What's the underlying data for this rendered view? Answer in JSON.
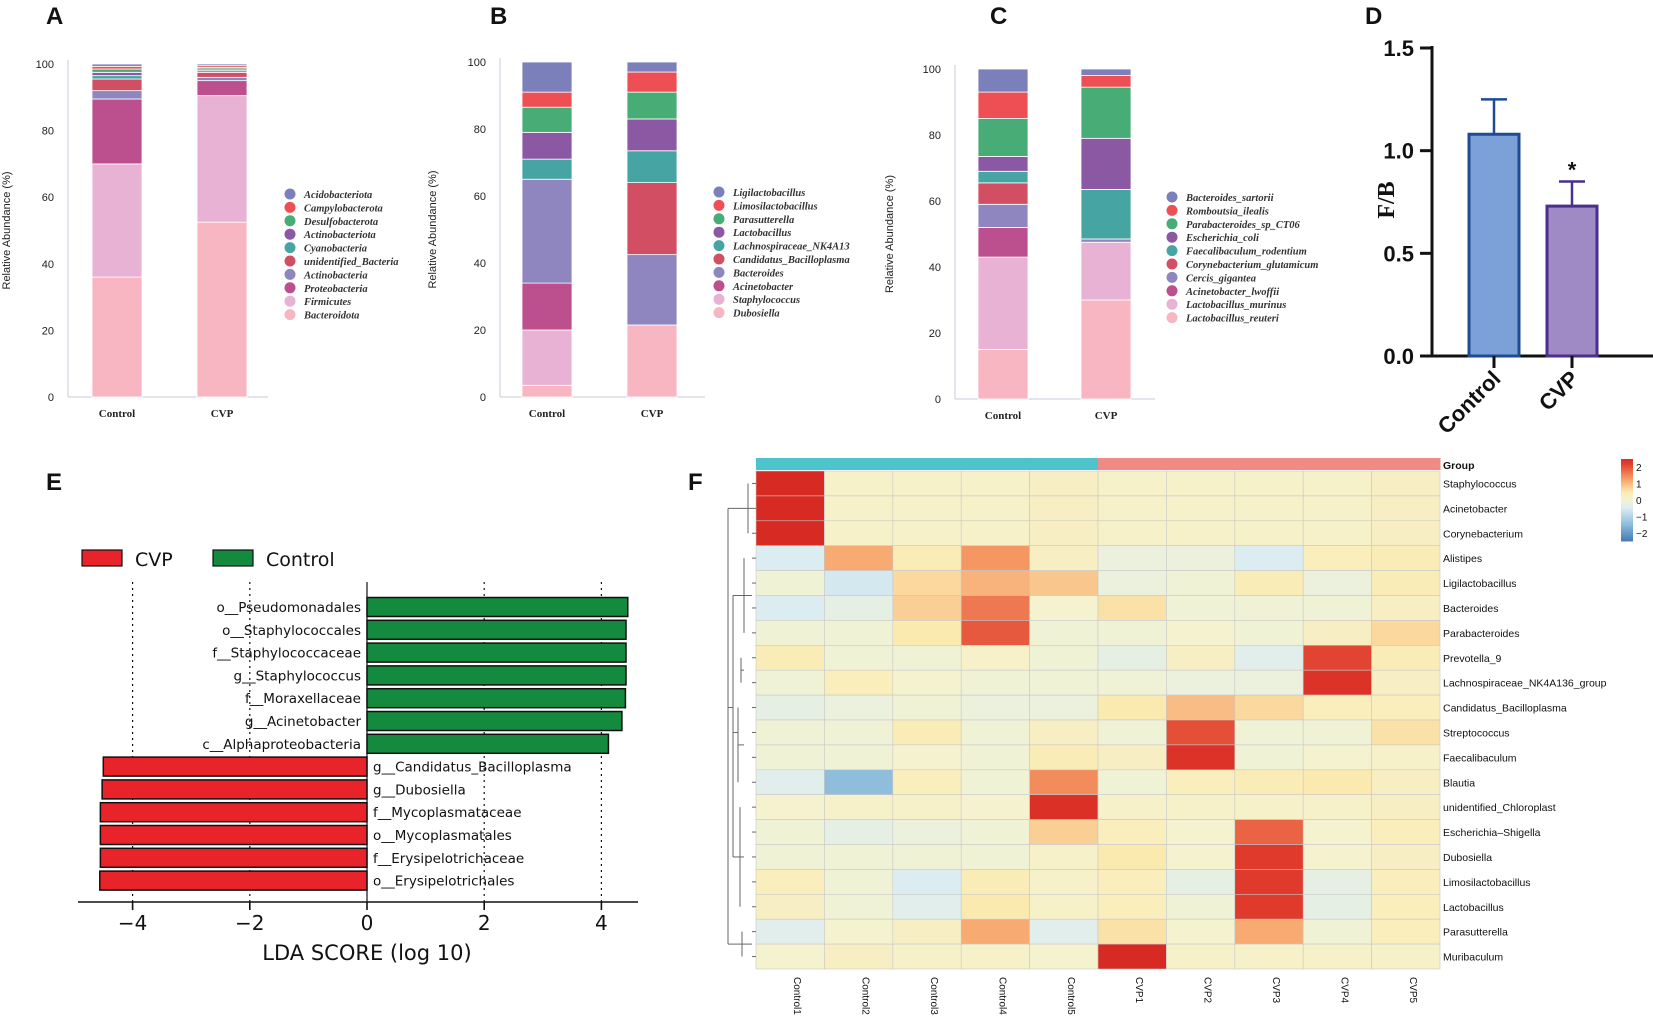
{
  "panel_labels": [
    "A",
    "B",
    "C",
    "D",
    "E",
    "F"
  ],
  "chart_data": [
    {
      "panel": "A",
      "type": "bar",
      "stacked": true,
      "ylabel": "Relative Abundance  (%)",
      "ylim": [
        0,
        100
      ],
      "yticks": [
        0,
        20,
        40,
        60,
        80,
        100
      ],
      "categories": [
        "Control",
        "CVP"
      ],
      "series": [
        {
          "name": "Bacteroidota",
          "color": "#f7b6c2",
          "values": [
            36,
            52.5
          ]
        },
        {
          "name": "Firmicutes",
          "color": "#e8b2d4",
          "values": [
            34,
            38
          ]
        },
        {
          "name": "Proteobacteria",
          "color": "#bc4f8e",
          "values": [
            19.5,
            4.5
          ]
        },
        {
          "name": "Actinobacteria",
          "color": "#8f86c0",
          "values": [
            2.5,
            1
          ]
        },
        {
          "name": "unidentified_Bacteria",
          "color": "#d24e62",
          "values": [
            3.5,
            1.5
          ]
        },
        {
          "name": "Cyanobacteria",
          "color": "#46a5a3",
          "values": [
            1,
            0.5
          ]
        },
        {
          "name": "Actinobacteriota",
          "color": "#8b58a4",
          "values": [
            1,
            0.5
          ]
        },
        {
          "name": "Desulfobacterota",
          "color": "#47ac75",
          "values": [
            1,
            0.5
          ]
        },
        {
          "name": "Campylobacterota",
          "color": "#ee4f55",
          "values": [
            0.8,
            0.5
          ]
        },
        {
          "name": "Acidobacteriota",
          "color": "#7b80bb",
          "values": [
            0.7,
            0.5
          ]
        }
      ]
    },
    {
      "panel": "B",
      "type": "bar",
      "stacked": true,
      "ylabel": "Relative Abundance  (%)",
      "ylim": [
        0,
        100
      ],
      "yticks": [
        0,
        20,
        40,
        60,
        80,
        100
      ],
      "categories": [
        "Control",
        "CVP"
      ],
      "series": [
        {
          "name": "Dubosiella",
          "color": "#f7b6c2",
          "values": [
            3.5,
            21.5
          ]
        },
        {
          "name": "Staphylococcus",
          "color": "#e8b2d4",
          "values": [
            16.5,
            0
          ]
        },
        {
          "name": "Acinetobacter",
          "color": "#bc4f8e",
          "values": [
            14,
            0
          ]
        },
        {
          "name": "Bacteroides",
          "color": "#8f86c0",
          "values": [
            31,
            21
          ]
        },
        {
          "name": "Candidatus_Bacilloplasma",
          "color": "#d24e62",
          "values": [
            0,
            21.5
          ]
        },
        {
          "name": "Lachnospiraceae_NK4A13",
          "color": "#46a5a3",
          "values": [
            6,
            9.5
          ]
        },
        {
          "name": "Lactobacillus",
          "color": "#8b58a4",
          "values": [
            8,
            9.5
          ]
        },
        {
          "name": "Parasutterella",
          "color": "#47ac75",
          "values": [
            7.5,
            8
          ]
        },
        {
          "name": "Limosilactobacillus",
          "color": "#ee4f55",
          "values": [
            4.5,
            6
          ]
        },
        {
          "name": "Ligilactobacillus",
          "color": "#7b80bb",
          "values": [
            9,
            3
          ]
        }
      ]
    },
    {
      "panel": "C",
      "type": "bar",
      "stacked": true,
      "ylabel": "Relative Abundance  (%)",
      "ylim": [
        0,
        100
      ],
      "yticks": [
        0,
        20,
        40,
        60,
        80,
        100
      ],
      "categories": [
        "Control",
        "CVP"
      ],
      "series": [
        {
          "name": "Lactobacillus_reuteri",
          "color": "#f7b6c2",
          "values": [
            15,
            30
          ]
        },
        {
          "name": "Lactobacillus_murinus",
          "color": "#e8b2d4",
          "values": [
            28,
            17.5
          ]
        },
        {
          "name": "Acinetobacter_lwoffii",
          "color": "#bc4f8e",
          "values": [
            9,
            0
          ]
        },
        {
          "name": "Cercis_gigantea",
          "color": "#8f86c0",
          "values": [
            7,
            1
          ]
        },
        {
          "name": "Corynebacterium_glutamicum",
          "color": "#d24e62",
          "values": [
            6.5,
            0
          ]
        },
        {
          "name": "Faecalibaculum_rodentium",
          "color": "#46a5a3",
          "values": [
            3.5,
            15
          ]
        },
        {
          "name": "Escherichia_coli",
          "color": "#8b58a4",
          "values": [
            4.5,
            15.5
          ]
        },
        {
          "name": "Parabacteroides_sp_CT06",
          "color": "#47ac75",
          "values": [
            11.5,
            15.5
          ]
        },
        {
          "name": "Romboutsia_ilealis",
          "color": "#ee4f55",
          "values": [
            8,
            3.5
          ]
        },
        {
          "name": "Bacteroides_sartorii",
          "color": "#7b80bb",
          "values": [
            7,
            2
          ]
        }
      ]
    },
    {
      "panel": "D",
      "type": "bar",
      "ylabel": "F/B",
      "ylim": [
        0,
        1.5
      ],
      "yticks": [
        "0.0",
        "0.5",
        "1.0",
        "1.5"
      ],
      "categories": [
        "Control",
        "CVP"
      ],
      "values": [
        1.08,
        0.73
      ],
      "errors": [
        0.17,
        0.12
      ],
      "colors": [
        "#7ba1d8",
        "#a08ac6"
      ],
      "edge_colors": [
        "#1f4a94",
        "#4a2f8c"
      ],
      "annotations": [
        {
          "category": "CVP",
          "text": "*"
        }
      ]
    },
    {
      "panel": "E",
      "type": "bar",
      "orientation": "horizontal",
      "xlabel": "LDA SCORE (log 10)",
      "xlim": [
        -4.5,
        4.5
      ],
      "xticks": [
        "−4",
        "−2",
        "0",
        "2",
        "4"
      ],
      "legend": [
        {
          "name": "CVP",
          "color": "#e8232a"
        },
        {
          "name": "Control",
          "color": "#138a3d"
        }
      ],
      "bars": [
        {
          "label": "o__Pseudomonadales",
          "value": 4.45,
          "group": "Control"
        },
        {
          "label": "o__Staphylococcales",
          "value": 4.42,
          "group": "Control"
        },
        {
          "label": "f__Staphylococcaceae",
          "value": 4.42,
          "group": "Control"
        },
        {
          "label": "g__Staphylococcus",
          "value": 4.42,
          "group": "Control"
        },
        {
          "label": "f__Moraxellaceae",
          "value": 4.41,
          "group": "Control"
        },
        {
          "label": "g__Acinetobacter",
          "value": 4.35,
          "group": "Control"
        },
        {
          "label": "c__Alphaproteobacteria",
          "value": 4.12,
          "group": "Control"
        },
        {
          "label": "g__Candidatus_Bacilloplasma",
          "value": -4.5,
          "group": "CVP"
        },
        {
          "label": "g__Dubosiella",
          "value": -4.52,
          "group": "CVP"
        },
        {
          "label": "f__Mycoplasmataceae",
          "value": -4.55,
          "group": "CVP"
        },
        {
          "label": "o__Mycoplasmatales",
          "value": -4.55,
          "group": "CVP"
        },
        {
          "label": "f__Erysipelotrichaceae",
          "value": -4.55,
          "group": "CVP"
        },
        {
          "label": "o__Erysipelotrichales",
          "value": -4.56,
          "group": "CVP"
        }
      ]
    },
    {
      "panel": "F",
      "type": "heatmap",
      "group_label": "Group",
      "columns": [
        "Control1",
        "Control2",
        "Control3",
        "Control4",
        "Control5",
        "CVP1",
        "CVP2",
        "CVP3",
        "CVP4",
        "CVP5"
      ],
      "column_groups": [
        "Control",
        "Control",
        "Control",
        "Control",
        "Control",
        "CVP",
        "CVP",
        "CVP",
        "CVP",
        "CVP"
      ],
      "group_colors": {
        "Control": "#4ec3cc",
        "CVP": "#f08a84"
      },
      "rows": [
        "Staphylococcus",
        "Acinetobacter",
        "Corynebacterium",
        "Alistipes",
        "Ligilactobacillus",
        "Bacteroides",
        "Parabacteroides",
        "Prevotella_9",
        "Lachnospiraceae_NK4A136_group",
        "Candidatus_Bacilloplasma",
        "Streptococcus",
        "Faecalibaculum",
        "Blautia",
        "unidentified_Chloroplast",
        "Escherichia–Shigella",
        "Dubosiella",
        "Limosilactobacillus",
        "Lactobacillus",
        "Parasutterella",
        "Muribaculum"
      ],
      "values": [
        [
          2.8,
          0.1,
          0.1,
          0.1,
          0.2,
          0.1,
          0.1,
          0.1,
          0.1,
          0.2
        ],
        [
          2.8,
          0.1,
          0.1,
          0.1,
          0.2,
          0.1,
          0.1,
          0.1,
          0.1,
          0.2
        ],
        [
          2.8,
          0.1,
          0.1,
          0.1,
          0.2,
          0.1,
          0.1,
          0.1,
          0.1,
          0.2
        ],
        [
          -0.5,
          1.2,
          0.4,
          1.4,
          0.2,
          -0.2,
          -0.2,
          -0.5,
          0.3,
          0.4
        ],
        [
          -0.1,
          -0.6,
          0.7,
          1.1,
          0.9,
          -0.2,
          -0.1,
          0.4,
          -0.2,
          0.4
        ],
        [
          -0.5,
          -0.3,
          0.8,
          1.7,
          0.0,
          0.6,
          -0.1,
          -0.1,
          -0.1,
          0.2
        ],
        [
          -0.1,
          -0.1,
          0.5,
          2.0,
          -0.1,
          -0.1,
          0.0,
          -0.1,
          0.2,
          0.7
        ],
        [
          0.4,
          -0.1,
          -0.1,
          0.1,
          -0.1,
          -0.3,
          0.2,
          -0.4,
          2.2,
          0.4
        ],
        [
          -0.1,
          0.3,
          0.0,
          -0.1,
          -0.1,
          -0.1,
          -0.2,
          -0.2,
          2.5,
          0.2
        ],
        [
          -0.3,
          -0.2,
          -0.1,
          -0.2,
          -0.2,
          0.5,
          1.0,
          0.7,
          0.3,
          0.3
        ],
        [
          -0.1,
          -0.1,
          0.4,
          -0.1,
          0.2,
          -0.1,
          2.1,
          -0.1,
          -0.1,
          0.6
        ],
        [
          -0.1,
          -0.1,
          0.0,
          -0.1,
          0.4,
          0.2,
          2.5,
          -0.1,
          0.0,
          0.1
        ],
        [
          -0.4,
          -1.5,
          0.3,
          -0.1,
          1.5,
          -0.1,
          0.3,
          0.4,
          0.5,
          0.2
        ],
        [
          0.0,
          0.1,
          0.1,
          0.0,
          2.6,
          0.1,
          0.1,
          0.1,
          0.1,
          0.2
        ],
        [
          -0.1,
          -0.3,
          -0.2,
          -0.1,
          0.8,
          0.3,
          0.0,
          1.9,
          0.0,
          0.3
        ],
        [
          -0.1,
          -0.1,
          -0.1,
          -0.1,
          0.1,
          0.5,
          0.0,
          2.3,
          0.0,
          0.2
        ],
        [
          0.3,
          -0.1,
          -0.5,
          0.4,
          0.1,
          0.3,
          -0.3,
          2.3,
          -0.3,
          0.3
        ],
        [
          0.2,
          -0.1,
          -0.4,
          0.5,
          0.1,
          0.3,
          -0.1,
          2.3,
          -0.3,
          0.3
        ],
        [
          -0.4,
          0.0,
          0.2,
          1.2,
          -0.4,
          0.6,
          0.0,
          1.2,
          -0.1,
          0.3
        ],
        [
          0.0,
          0.2,
          0.1,
          0.1,
          0.0,
          2.8,
          0.1,
          0.1,
          0.1,
          0.1
        ]
      ],
      "colorbar_ticks": [
        "2",
        "1",
        "0",
        "−1",
        "−2"
      ]
    }
  ]
}
